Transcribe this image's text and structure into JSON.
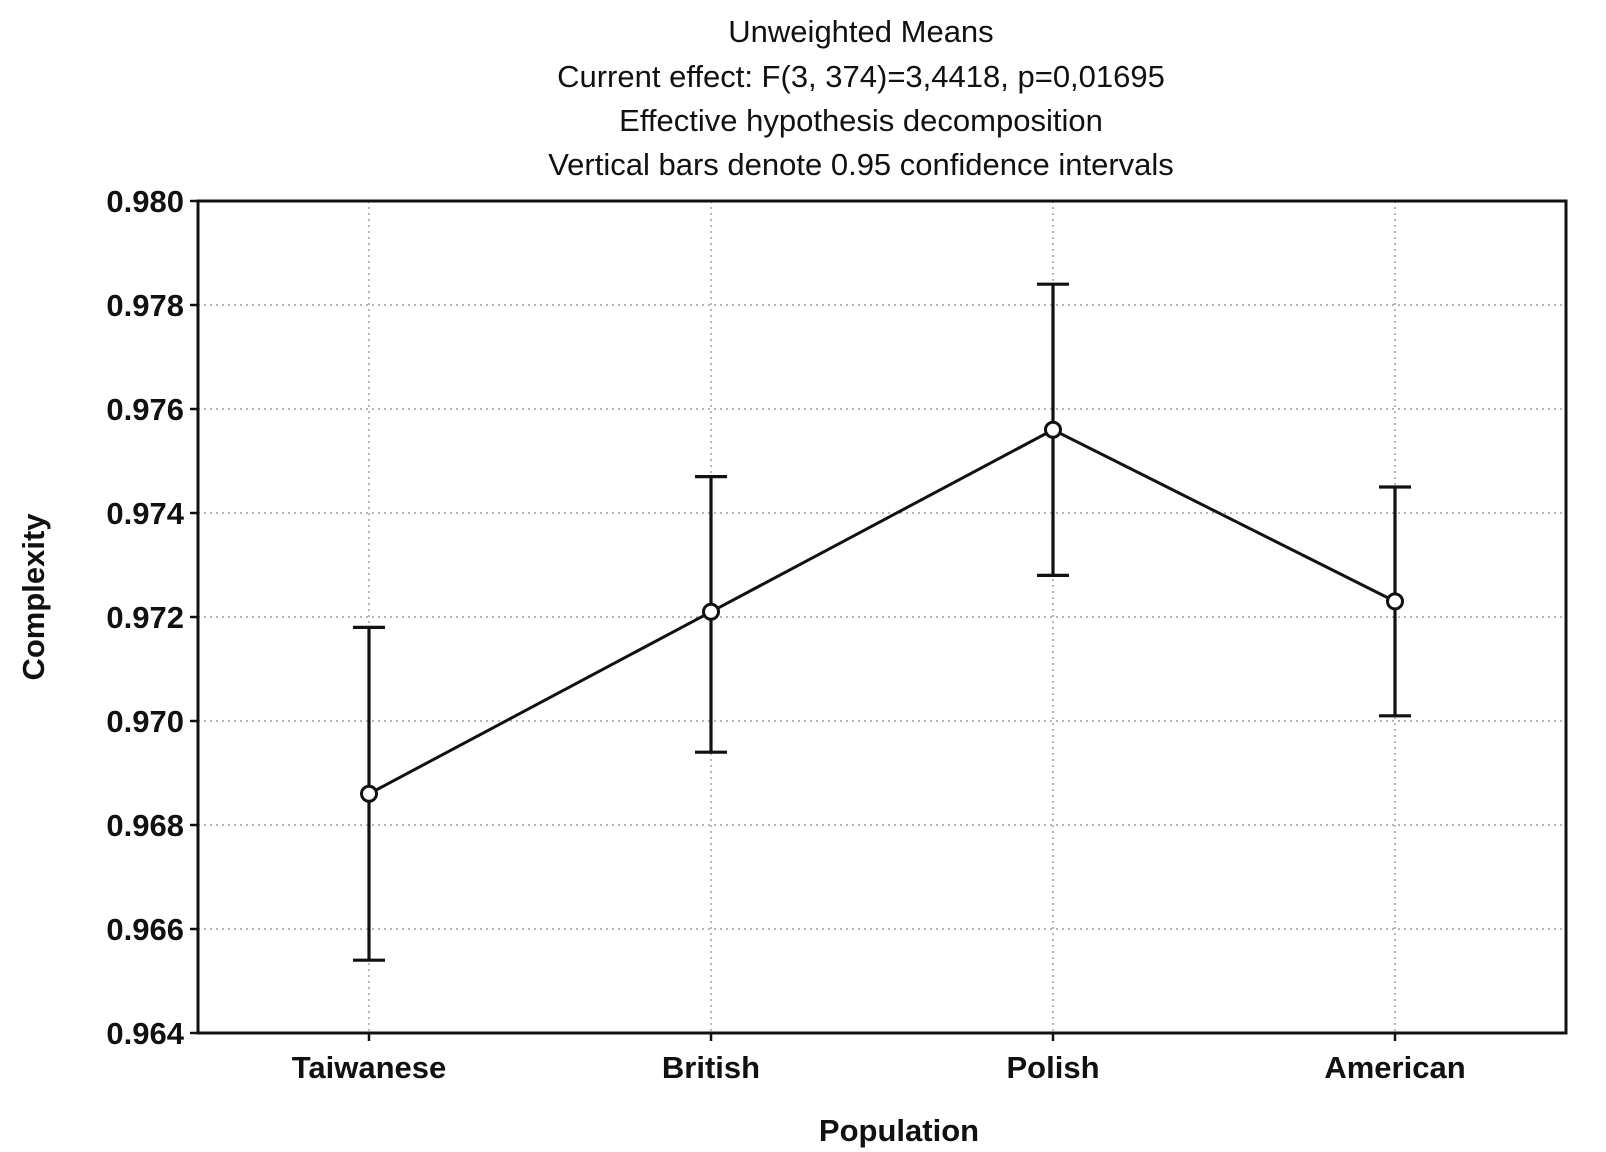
{
  "chart_data": {
    "type": "line",
    "title_lines": [
      "Unweighted Means",
      "Current effect: F(3, 374)=3,4418, p=0,01695",
      "Effective hypothesis decomposition",
      "Vertical bars denote 0.95 confidence intervals"
    ],
    "xlabel": "Population",
    "ylabel": "Complexity",
    "categories": [
      "Taiwanese",
      "British",
      "Polish",
      "American"
    ],
    "series": [
      {
        "values": [
          0.9686,
          0.9721,
          0.9756,
          0.9723
        ],
        "ci_lower": [
          0.9654,
          0.9694,
          0.9728,
          0.9701
        ],
        "ci_upper": [
          0.9718,
          0.9747,
          0.9784,
          0.9745
        ]
      }
    ],
    "ylim": [
      0.964,
      0.98
    ],
    "yticks": [
      "0.964",
      "0.966",
      "0.968",
      "0.970",
      "0.972",
      "0.974",
      "0.976",
      "0.978",
      "0.980"
    ],
    "grid": true,
    "marker": "open-circle",
    "line_color": "#111111"
  }
}
